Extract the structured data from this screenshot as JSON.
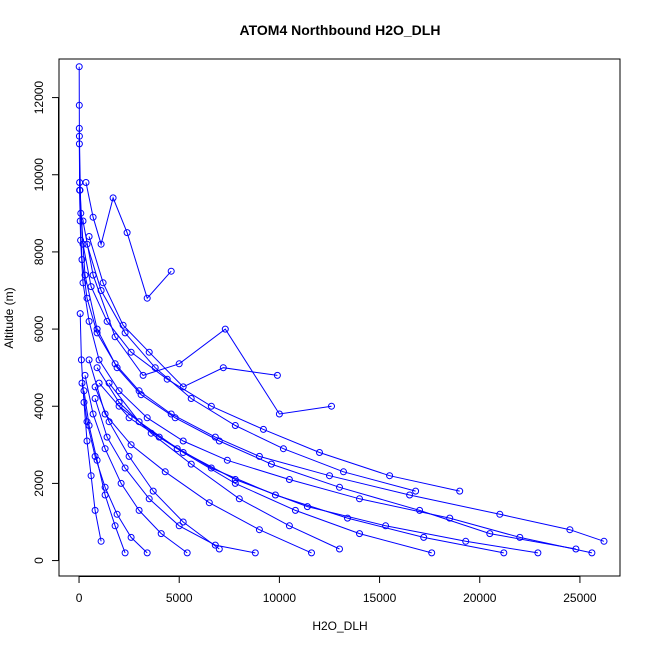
{
  "chart_data": {
    "type": "line",
    "title": "ATOM4 Northbound H2O_DLH",
    "xlabel": "H2O_DLH",
    "ylabel": "Altitude (m)",
    "xlim": [
      -1000,
      27000
    ],
    "ylim": [
      -400,
      13000
    ],
    "x_ticks": [
      0,
      5000,
      10000,
      15000,
      20000,
      25000
    ],
    "y_ticks": [
      0,
      2000,
      4000,
      6000,
      8000,
      10000,
      12000
    ],
    "grid": false,
    "legend": "none",
    "marker": "open-circle",
    "color": "#0000ff",
    "series": [
      {
        "x": [
          26200,
          24500,
          21000,
          16500,
          12500,
          9000,
          6800,
          4600,
          3000,
          1800,
          900,
          400,
          150,
          60,
          30,
          20,
          15,
          10
        ],
        "y": [
          500,
          800,
          1200,
          1700,
          2200,
          2700,
          3200,
          3800,
          4400,
          5100,
          5900,
          6800,
          7800,
          8800,
          9800,
          10800,
          11800,
          12800
        ]
      },
      {
        "x": [
          25600,
          22000,
          18500,
          14000,
          10500,
          7400,
          5200,
          3400,
          2000,
          1000,
          500,
          200,
          80,
          30,
          15
        ],
        "y": [
          200,
          600,
          1100,
          1600,
          2100,
          2600,
          3100,
          3700,
          4400,
          5200,
          6200,
          7200,
          8300,
          9600,
          11200
        ]
      },
      {
        "x": [
          24800,
          20500,
          17000,
          13000,
          9600,
          7000,
          4800,
          3100,
          1900,
          900,
          300,
          90,
          20
        ],
        "y": [
          300,
          700,
          1300,
          1900,
          2500,
          3100,
          3700,
          4300,
          5000,
          6000,
          7400,
          9000,
          11000
        ]
      },
      {
        "x": [
          19000,
          15500,
          12000,
          9200,
          6600,
          4400,
          2600,
          1400,
          600,
          200,
          50
        ],
        "y": [
          1800,
          2200,
          2800,
          3400,
          4000,
          4700,
          5400,
          6200,
          7100,
          8200,
          9600
        ]
      },
      {
        "x": [
          16800,
          13200,
          10200,
          7800,
          5600,
          3800,
          2300,
          1100,
          400
        ],
        "y": [
          1800,
          2300,
          2900,
          3500,
          4200,
          5000,
          5900,
          7000,
          8200
        ]
      },
      {
        "x": [
          12600,
          10000,
          7300,
          5000,
          3200,
          1800,
          700,
          200
        ],
        "y": [
          4000,
          3800,
          6000,
          5100,
          4800,
          5800,
          7400,
          8800
        ]
      },
      {
        "x": [
          9900,
          7200,
          5200,
          3500,
          2200,
          1200,
          500
        ],
        "y": [
          4800,
          5000,
          4500,
          5400,
          6100,
          7200,
          8400
        ]
      },
      {
        "x": [
          4600,
          3400,
          2400,
          1700,
          1100,
          700,
          350
        ],
        "y": [
          7500,
          6800,
          8500,
          9400,
          8200,
          8900,
          9800
        ]
      },
      {
        "x": [
          8800,
          6800,
          5000,
          3500,
          2300,
          1400,
          800
        ],
        "y": [
          200,
          400,
          900,
          1600,
          2400,
          3200,
          4200
        ]
      },
      {
        "x": [
          11600,
          9000,
          6500,
          4300,
          2600,
          1300,
          500
        ],
        "y": [
          200,
          800,
          1500,
          2300,
          3000,
          3800,
          5200
        ]
      },
      {
        "x": [
          13000,
          10500,
          8000,
          5600,
          3600,
          2000,
          900
        ],
        "y": [
          300,
          900,
          1600,
          2500,
          3300,
          4100,
          5000
        ]
      },
      {
        "x": [
          17600,
          14000,
          10800,
          7800,
          5200,
          3000,
          1500
        ],
        "y": [
          200,
          700,
          1300,
          2000,
          2800,
          3600,
          4600
        ]
      },
      {
        "x": [
          21200,
          17200,
          13400,
          9800,
          6600,
          4000,
          2000
        ],
        "y": [
          200,
          600,
          1100,
          1700,
          2400,
          3200,
          4000
        ]
      },
      {
        "x": [
          22900,
          19300,
          15300,
          11400,
          7800,
          4900,
          2500,
          1000
        ],
        "y": [
          200,
          500,
          900,
          1400,
          2100,
          2900,
          3700,
          4600
        ]
      },
      {
        "x": [
          5400,
          4100,
          3000,
          2100,
          1300,
          700,
          300
        ],
        "y": [
          200,
          700,
          1300,
          2000,
          2900,
          3800,
          4800
        ]
      },
      {
        "x": [
          3400,
          2600,
          1900,
          1300,
          800,
          400,
          150
        ],
        "y": [
          200,
          600,
          1200,
          1900,
          2700,
          3600,
          4600
        ]
      },
      {
        "x": [
          2300,
          1800,
          1300,
          900,
          500,
          250
        ],
        "y": [
          200,
          900,
          1700,
          2600,
          3500,
          4400
        ]
      },
      {
        "x": [
          7000,
          5200,
          3700,
          2500,
          1500,
          800
        ],
        "y": [
          300,
          1000,
          1800,
          2700,
          3600,
          4500
        ]
      },
      {
        "x": [
          1100,
          800,
          600,
          400,
          250,
          120,
          60
        ],
        "y": [
          500,
          1300,
          2200,
          3100,
          4100,
          5200,
          6400
        ]
      }
    ]
  }
}
